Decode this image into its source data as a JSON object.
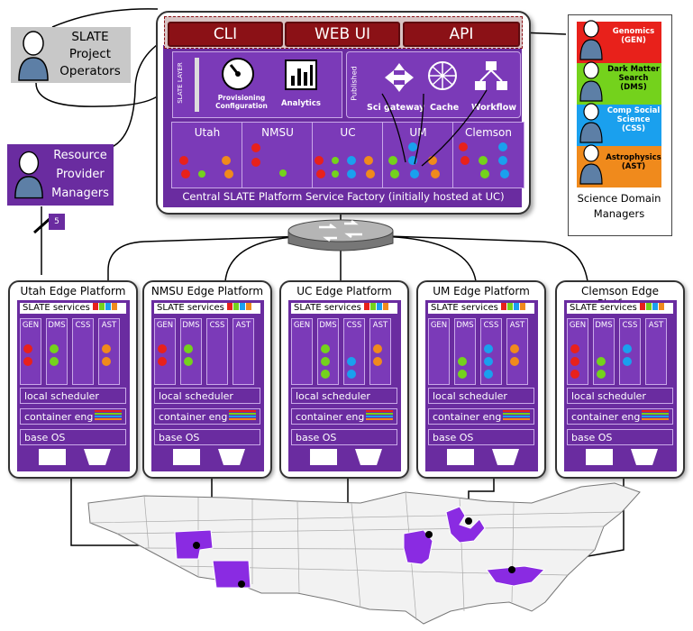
{
  "operators": {
    "label": "SLATE\nProject\nOperators"
  },
  "rpm": {
    "label": "Resource\nProvider\nManagers",
    "badge": "5"
  },
  "factory": {
    "buttons": [
      "CLI",
      "WEB UI",
      "API"
    ],
    "slate_layer": "SLATE LAYER",
    "provisioning": "Provisioning\nConfiguration",
    "analytics": "Analytics",
    "published": "Published",
    "published_items": [
      "Sci gateway",
      "Cache",
      "Workflow"
    ],
    "sites": [
      "Utah",
      "NMSU",
      "UC",
      "UM",
      "Clemson"
    ],
    "caption": "Central SLATE Platform Service Factory (initially hosted at UC)"
  },
  "domains": {
    "items": [
      {
        "label": "Genomics\n(GEN)",
        "color": "#e8211b"
      },
      {
        "label": "Dark Matter\nSearch\n(DMS)",
        "color": "#74d21c"
      },
      {
        "label": "Comp Social\nScience\n(CSS)",
        "color": "#1aa0ee"
      },
      {
        "label": "Astrophysics\n(AST)",
        "color": "#f08a1c"
      }
    ],
    "caption": "Science Domain\nManagers"
  },
  "edges": [
    {
      "title": "Utah Edge Platform"
    },
    {
      "title": "NMSU Edge Platform"
    },
    {
      "title": "UC Edge Platform"
    },
    {
      "title": "UM Edge Platform"
    },
    {
      "title": "Clemson Edge Platform"
    }
  ],
  "edge_common": {
    "services": "SLATE services",
    "columns": [
      "GEN",
      "DMS",
      "CSS",
      "AST"
    ],
    "scheduler": "local scheduler",
    "container": "container eng",
    "os": "base OS"
  }
}
